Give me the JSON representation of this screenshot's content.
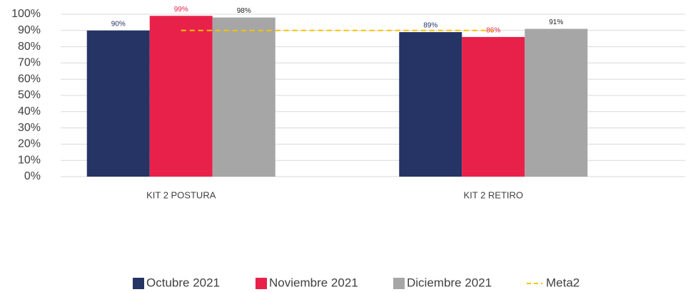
{
  "chart_data": {
    "type": "bar",
    "categories": [
      "KIT 2 POSTURA",
      "KIT 2 RETIRO"
    ],
    "series": [
      {
        "name": "Octubre 2021",
        "color": "#253465",
        "label_color": "#253465",
        "values": [
          90,
          89
        ],
        "value_labels": [
          "90%",
          "89%"
        ]
      },
      {
        "name": "Noviembre 2021",
        "color": "#e8214b",
        "label_color": "#e8214b",
        "values": [
          99,
          86
        ],
        "value_labels": [
          "99%",
          "86%"
        ]
      },
      {
        "name": "Diciembre 2021",
        "color": "#a6a6a6",
        "label_color": "#222222",
        "values": [
          98,
          91
        ],
        "value_labels": [
          "98%",
          "91%"
        ]
      },
      {
        "name": "Meta2",
        "type": "line",
        "dashed": true,
        "color": "#f5c400",
        "values": [
          90,
          90
        ]
      }
    ],
    "ylim": [
      0,
      100
    ],
    "yticks": [
      {
        "value": 0,
        "label": "0%"
      },
      {
        "value": 10,
        "label": "10%"
      },
      {
        "value": 20,
        "label": "20%"
      },
      {
        "value": 30,
        "label": "30%"
      },
      {
        "value": 40,
        "label": "40%"
      },
      {
        "value": 50,
        "label": "50%"
      },
      {
        "value": 60,
        "label": "60%"
      },
      {
        "value": 70,
        "label": "70%"
      },
      {
        "value": 80,
        "label": "80%"
      },
      {
        "value": 90,
        "label": "90%"
      },
      {
        "value": 100,
        "label": "100%"
      }
    ],
    "grid": true,
    "legend": "bottom"
  }
}
